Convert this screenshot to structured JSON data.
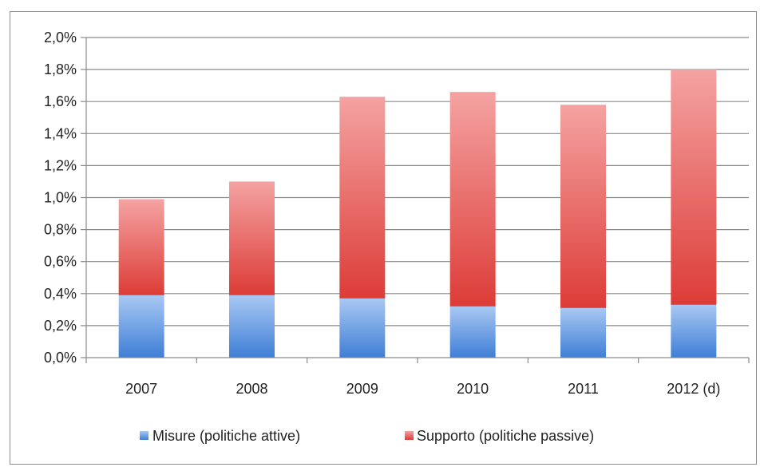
{
  "chart_data": {
    "type": "bar",
    "stacked": true,
    "categories": [
      "2007",
      "2008",
      "2009",
      "2010",
      "2011",
      "2012 (d)"
    ],
    "series": [
      {
        "name": "Misure (politiche attive)",
        "values": [
          0.39,
          0.39,
          0.37,
          0.32,
          0.31,
          0.33
        ],
        "color": "#4a86d8"
      },
      {
        "name": "Supporto (politiche passive)",
        "values": [
          0.6,
          0.71,
          1.26,
          1.34,
          1.27,
          1.47
        ],
        "color": "#e04a46"
      }
    ],
    "ylim": [
      0,
      2.0
    ],
    "yticks": [
      0,
      0.2,
      0.4,
      0.6,
      0.8,
      1.0,
      1.2,
      1.4,
      1.6,
      1.8,
      2.0
    ],
    "ytick_labels": [
      "0,0%",
      "0,2%",
      "0,4%",
      "0,6%",
      "0,8%",
      "1,0%",
      "1,2%",
      "1,4%",
      "1,6%",
      "1,8%",
      "2,0%"
    ],
    "grid": true,
    "legend_position": "bottom",
    "title": "",
    "xlabel": "",
    "ylabel": ""
  }
}
